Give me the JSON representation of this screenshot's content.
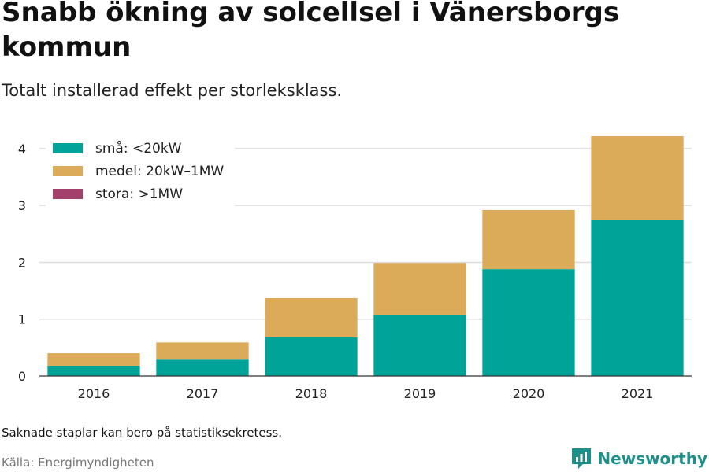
{
  "header": {
    "title": "Snabb ökning av solcellsel i Vänersborgs kommun",
    "subtitle": "Totalt installerad effekt per storleksklass."
  },
  "footer": {
    "note": "Saknade staplar kan bero på statistiksekretess.",
    "source": "Källa: Energimyndigheten",
    "brand": "Newsworthy"
  },
  "chart_data": {
    "type": "bar",
    "stacked": true,
    "title": "Snabb ökning av solcellsel i Vänersborgs kommun",
    "subtitle": "Totalt installerad effekt per storleksklass.",
    "categories": [
      "2016",
      "2017",
      "2018",
      "2019",
      "2020",
      "2021"
    ],
    "series": [
      {
        "name": "små: <20kW",
        "color": "#00a398",
        "values": [
          0.18,
          0.3,
          0.68,
          1.08,
          1.88,
          2.74
        ]
      },
      {
        "name": "medel: 20kW–1MW",
        "color": "#dbab5a",
        "values": [
          0.22,
          0.29,
          0.69,
          0.91,
          1.04,
          1.48
        ]
      },
      {
        "name": "stora: >1MW",
        "color": "#a3406b",
        "values": [
          0,
          0,
          0,
          0,
          0,
          0
        ]
      }
    ],
    "ylim": [
      0,
      4.4
    ],
    "yticks": [
      0,
      1,
      2,
      3,
      4
    ],
    "grid": true,
    "legend": "top-left"
  }
}
